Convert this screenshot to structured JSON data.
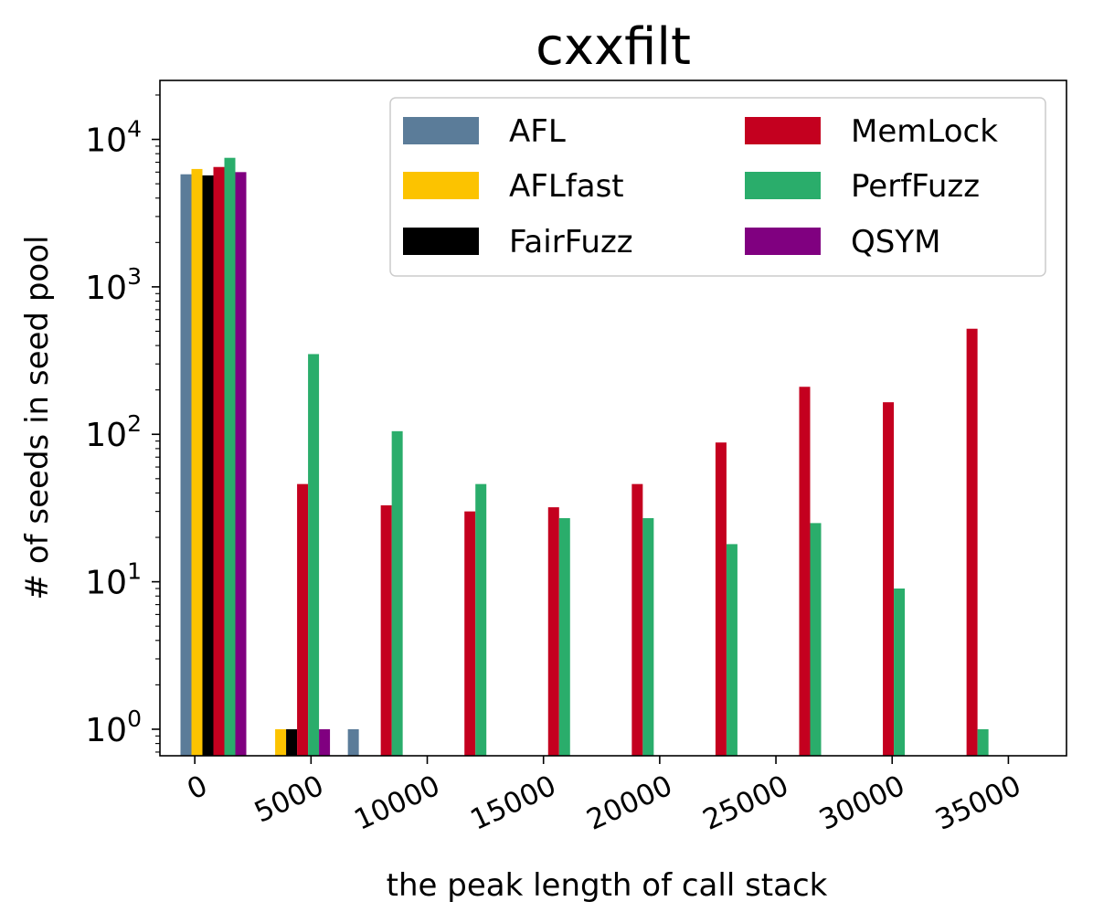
{
  "chart_data": {
    "type": "bar",
    "title": "cxxfilt",
    "xlabel": "the peak length of call stack",
    "ylabel": "# of seeds in seed pool",
    "yscale": "log",
    "xlim": [
      -1500,
      37500
    ],
    "ylim_log10": [
      -0.18,
      1.4
    ],
    "x_ticks": [
      "0",
      "5000",
      "10000",
      "15000",
      "20000",
      "25000",
      "30000",
      "35000"
    ],
    "x_tick_values": [
      0,
      5000,
      10000,
      15000,
      20000,
      25000,
      30000,
      35000
    ],
    "y_ticks": [
      {
        "base": "10",
        "exp": "0",
        "value": 1
      },
      {
        "base": "10",
        "exp": "1",
        "value": 10
      },
      {
        "base": "10",
        "exp": "2",
        "value": 100
      },
      {
        "base": "10",
        "exp": "3",
        "value": 1000
      },
      {
        "base": "10",
        "exp": "4",
        "value": 10000
      }
    ],
    "legend_position": "upper-right",
    "groups": [
      800,
      4400,
      8000,
      11600,
      15200,
      18800,
      22400,
      26000,
      29600,
      33200
    ],
    "series": [
      {
        "name": "AFL",
        "color": "#5b7c99",
        "values": [
          5800,
          null,
          1,
          null,
          null,
          null,
          null,
          null,
          null,
          null
        ]
      },
      {
        "name": "AFLfast",
        "color": "#fcc300",
        "values": [
          6300,
          1,
          null,
          null,
          null,
          null,
          null,
          null,
          null,
          null
        ]
      },
      {
        "name": "FairFuzz",
        "color": "#000000",
        "values": [
          5700,
          1,
          null,
          null,
          null,
          null,
          null,
          null,
          null,
          null
        ]
      },
      {
        "name": "MemLock",
        "color": "#c4001f",
        "values": [
          6500,
          46,
          33,
          30,
          32,
          46,
          88,
          210,
          165,
          520
        ]
      },
      {
        "name": "PerfFuzz",
        "color": "#2aad6b",
        "values": [
          7500,
          350,
          105,
          46,
          27,
          27,
          18,
          25,
          9,
          1
        ]
      },
      {
        "name": "QSYM",
        "color": "#800080",
        "values": [
          6000,
          1,
          null,
          null,
          null,
          null,
          null,
          null,
          null,
          null
        ]
      }
    ]
  }
}
